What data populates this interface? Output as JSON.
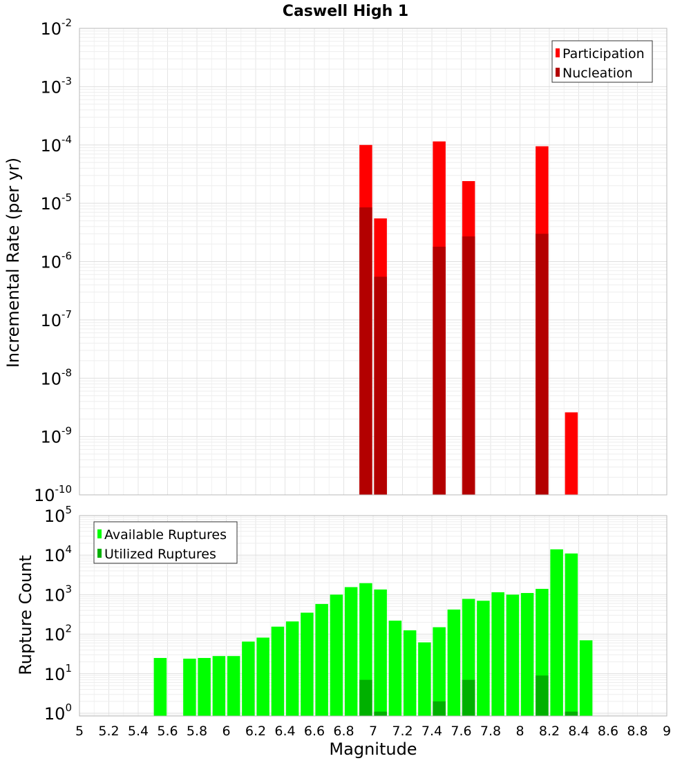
{
  "chart_data": [
    {
      "type": "bar",
      "title": "Caswell High 1",
      "xlabel": "",
      "ylabel": "Incremental Rate (per yr)",
      "yscale": "log",
      "ylim_exponents": [
        -10,
        -2
      ],
      "ytick_base": "10",
      "ytick_exponents": [
        -10,
        -9,
        -8,
        -7,
        -6,
        -5,
        -4,
        -3,
        -2
      ],
      "legend_position": "top-right",
      "series": [
        {
          "name": "Participation",
          "color": "#ff0000",
          "points": [
            {
              "x": 6.95,
              "y": 0.0001
            },
            {
              "x": 7.05,
              "y": 5.5e-06
            },
            {
              "x": 7.45,
              "y": 0.000115
            },
            {
              "x": 7.65,
              "y": 2.4e-05
            },
            {
              "x": 8.15,
              "y": 9.5e-05
            },
            {
              "x": 8.35,
              "y": 2.6e-09
            }
          ]
        },
        {
          "name": "Nucleation",
          "color": "#b30000",
          "points": [
            {
              "x": 6.95,
              "y": 8.5e-06
            },
            {
              "x": 7.05,
              "y": 5.5e-07
            },
            {
              "x": 7.45,
              "y": 1.8e-06
            },
            {
              "x": 7.65,
              "y": 2.7e-06
            },
            {
              "x": 8.15,
              "y": 3e-06
            }
          ]
        }
      ]
    },
    {
      "type": "bar",
      "title": "",
      "xlabel": "Magnitude",
      "ylabel": "Rupture Count",
      "yscale": "log",
      "ylim_exponents": [
        -0.07,
        5
      ],
      "ytick_base": "10",
      "ytick_exponents": [
        0,
        1,
        2,
        3,
        4,
        5
      ],
      "xlim": [
        5,
        9
      ],
      "xticks": [
        "5",
        "5.2",
        "5.4",
        "5.6",
        "5.8",
        "6",
        "6.2",
        "6.4",
        "6.6",
        "6.8",
        "7",
        "7.2",
        "7.4",
        "7.6",
        "7.8",
        "8",
        "8.2",
        "8.4",
        "8.6",
        "8.8",
        "9"
      ],
      "legend_position": "top-left",
      "series": [
        {
          "name": "Available Ruptures",
          "color": "#00ff00",
          "points": [
            {
              "x": 5.55,
              "y": 25
            },
            {
              "x": 5.75,
              "y": 24
            },
            {
              "x": 5.85,
              "y": 25
            },
            {
              "x": 5.95,
              "y": 28
            },
            {
              "x": 6.05,
              "y": 28
            },
            {
              "x": 6.15,
              "y": 65
            },
            {
              "x": 6.25,
              "y": 82
            },
            {
              "x": 6.35,
              "y": 155
            },
            {
              "x": 6.45,
              "y": 210
            },
            {
              "x": 6.55,
              "y": 350
            },
            {
              "x": 6.65,
              "y": 580
            },
            {
              "x": 6.75,
              "y": 1000
            },
            {
              "x": 6.85,
              "y": 1550
            },
            {
              "x": 6.95,
              "y": 1950
            },
            {
              "x": 7.05,
              "y": 1350
            },
            {
              "x": 7.15,
              "y": 220
            },
            {
              "x": 7.25,
              "y": 125
            },
            {
              "x": 7.35,
              "y": 62
            },
            {
              "x": 7.45,
              "y": 150
            },
            {
              "x": 7.55,
              "y": 420
            },
            {
              "x": 7.65,
              "y": 780
            },
            {
              "x": 7.75,
              "y": 700
            },
            {
              "x": 7.85,
              "y": 1150
            },
            {
              "x": 7.95,
              "y": 1000
            },
            {
              "x": 8.05,
              "y": 1100
            },
            {
              "x": 8.15,
              "y": 1400
            },
            {
              "x": 8.25,
              "y": 14000
            },
            {
              "x": 8.35,
              "y": 11000
            },
            {
              "x": 8.45,
              "y": 70
            }
          ]
        },
        {
          "name": "Utilized Ruptures",
          "color": "#00b000",
          "points": [
            {
              "x": 6.95,
              "y": 7
            },
            {
              "x": 7.05,
              "y": 1.1
            },
            {
              "x": 7.45,
              "y": 2
            },
            {
              "x": 7.65,
              "y": 7
            },
            {
              "x": 8.15,
              "y": 9
            },
            {
              "x": 8.35,
              "y": 1.1
            }
          ]
        }
      ]
    }
  ]
}
